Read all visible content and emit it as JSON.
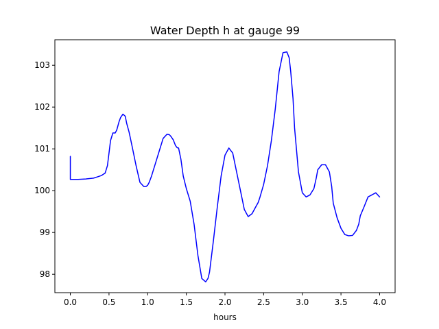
{
  "chart_data": {
    "type": "line",
    "title": "Water Depth h at gauge 99",
    "xlabel": "hours",
    "ylabel": "",
    "xlim": [
      -0.2,
      4.2
    ],
    "ylim": [
      97.56,
      103.61
    ],
    "xticks": [
      0.0,
      0.5,
      1.0,
      1.5,
      2.0,
      2.5,
      3.0,
      3.5,
      4.0
    ],
    "xtick_labels": [
      "0.0",
      "0.5",
      "1.0",
      "1.5",
      "2.0",
      "2.5",
      "3.0",
      "3.5",
      "4.0"
    ],
    "yticks": [
      98,
      99,
      100,
      101,
      102,
      103
    ],
    "ytick_labels": [
      "98",
      "99",
      "100",
      "101",
      "102",
      "103"
    ],
    "grid": false,
    "line_color": "#0000ff",
    "series": [
      {
        "x": [
          0.0,
          0.0,
          0.05,
          0.1,
          0.2,
          0.3,
          0.35,
          0.4,
          0.45,
          0.48,
          0.5,
          0.52,
          0.55,
          0.58,
          0.6,
          0.63,
          0.65,
          0.68,
          0.71,
          0.73,
          0.76,
          0.8,
          0.85,
          0.9,
          0.95,
          0.98,
          1.0,
          1.02,
          1.05,
          1.1,
          1.15,
          1.2,
          1.25,
          1.28,
          1.3,
          1.33,
          1.36,
          1.38,
          1.4,
          1.43,
          1.46,
          1.5,
          1.55,
          1.6,
          1.65,
          1.7,
          1.75,
          1.78,
          1.8,
          1.85,
          1.9,
          1.95,
          2.0,
          2.05,
          2.1,
          2.15,
          2.2,
          2.25,
          2.3,
          2.35,
          2.4,
          2.43,
          2.45,
          2.5,
          2.55,
          2.6,
          2.65,
          2.7,
          2.75,
          2.8,
          2.83,
          2.85,
          2.88,
          2.9,
          2.95,
          3.0,
          3.05,
          3.1,
          3.15,
          3.18,
          3.2,
          3.25,
          3.3,
          3.35,
          3.38,
          3.4,
          3.45,
          3.5,
          3.55,
          3.6,
          3.65,
          3.7,
          3.73,
          3.75,
          3.8,
          3.85,
          3.9,
          3.95,
          4.0
        ],
        "y": [
          100.82,
          100.27,
          100.27,
          100.27,
          100.28,
          100.3,
          100.33,
          100.36,
          100.42,
          100.6,
          100.9,
          101.2,
          101.38,
          101.38,
          101.45,
          101.65,
          101.75,
          101.83,
          101.78,
          101.6,
          101.4,
          101.05,
          100.6,
          100.2,
          100.1,
          100.1,
          100.13,
          100.2,
          100.35,
          100.65,
          100.95,
          101.25,
          101.35,
          101.34,
          101.3,
          101.22,
          101.08,
          101.03,
          101.02,
          100.75,
          100.35,
          100.05,
          99.75,
          99.2,
          98.45,
          97.9,
          97.82,
          97.9,
          98.05,
          98.8,
          99.6,
          100.35,
          100.85,
          101.02,
          100.9,
          100.45,
          100.0,
          99.55,
          99.38,
          99.45,
          99.62,
          99.72,
          99.83,
          100.15,
          100.6,
          101.2,
          101.95,
          102.85,
          103.3,
          103.32,
          103.18,
          102.85,
          102.2,
          101.5,
          100.45,
          99.95,
          99.85,
          99.9,
          100.05,
          100.3,
          100.5,
          100.62,
          100.62,
          100.45,
          100.1,
          99.7,
          99.35,
          99.1,
          98.95,
          98.92,
          98.93,
          99.05,
          99.2,
          99.4,
          99.62,
          99.85,
          99.9,
          99.95,
          99.85
        ]
      }
    ]
  }
}
